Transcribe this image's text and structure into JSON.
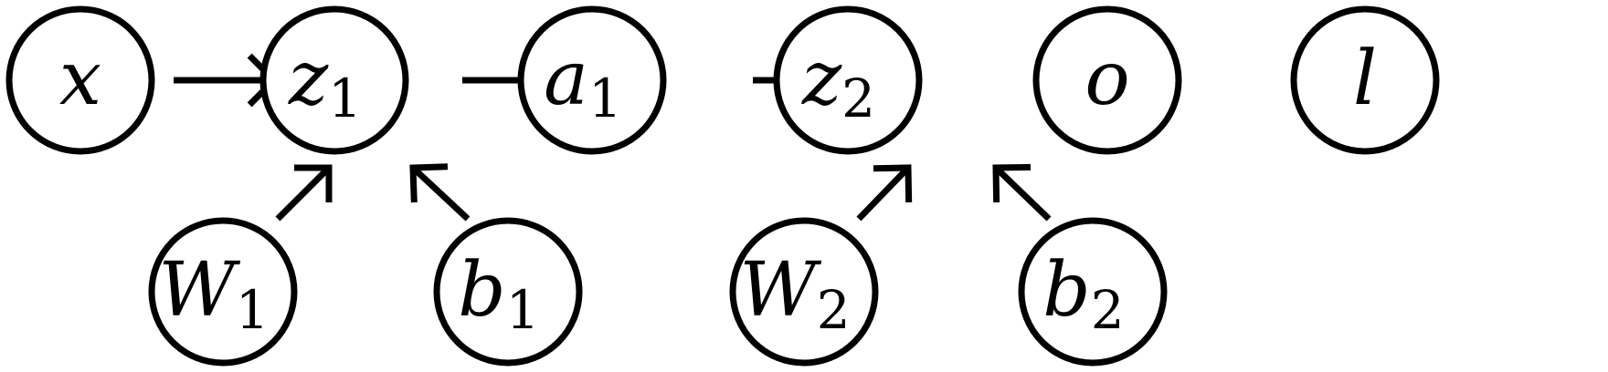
{
  "diagram": {
    "nodes": [
      {
        "id": "x",
        "name": "x",
        "subscript": ""
      },
      {
        "id": "z1",
        "name": "z",
        "subscript": "1"
      },
      {
        "id": "a1",
        "name": "a",
        "subscript": "1"
      },
      {
        "id": "z2",
        "name": "z",
        "subscript": "2"
      },
      {
        "id": "o",
        "name": "o",
        "subscript": ""
      },
      {
        "id": "l",
        "name": "l",
        "subscript": ""
      },
      {
        "id": "W1",
        "name": "W",
        "subscript": "1"
      },
      {
        "id": "b1",
        "name": "b",
        "subscript": "1"
      },
      {
        "id": "W2",
        "name": "W",
        "subscript": "2"
      },
      {
        "id": "b2",
        "name": "b",
        "subscript": "2"
      }
    ],
    "edges": [
      {
        "from": "x",
        "to": "z1"
      },
      {
        "from": "z1",
        "to": "a1"
      },
      {
        "from": "a1",
        "to": "z2"
      },
      {
        "from": "z2",
        "to": "o"
      },
      {
        "from": "o",
        "to": "l"
      },
      {
        "from": "W1",
        "to": "z1"
      },
      {
        "from": "b1",
        "to": "z1"
      },
      {
        "from": "W2",
        "to": "z2"
      },
      {
        "from": "b2",
        "to": "z2"
      }
    ],
    "colors": {
      "stroke": "#000000",
      "fill": "#ffffff"
    }
  }
}
